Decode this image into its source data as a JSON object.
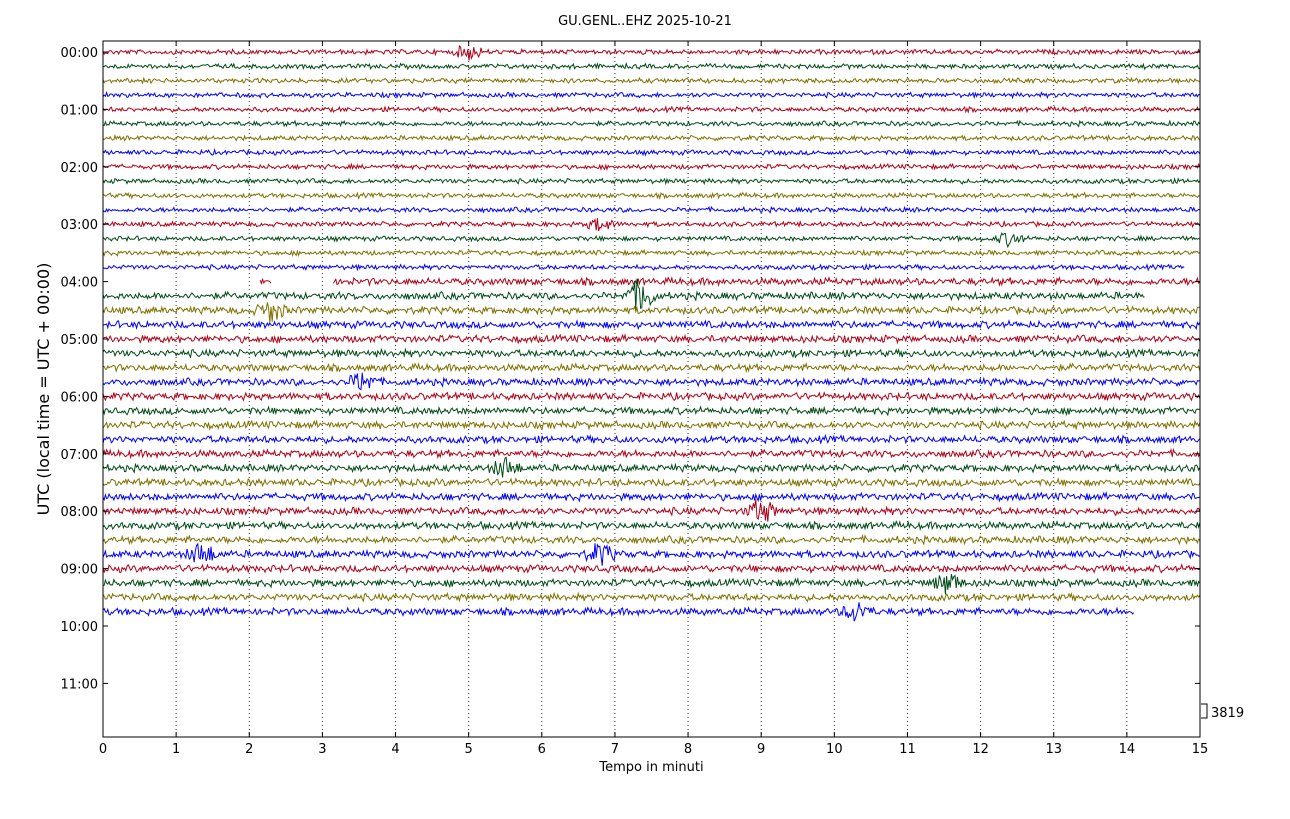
{
  "chart_data": {
    "type": "line",
    "title": "GU.GENL..EHZ 2025-10-21",
    "xlabel": "Tempo in minuti",
    "ylabel": "UTC (local time = UTC + 00:00)",
    "xlim": [
      0,
      15
    ],
    "x_ticks": [
      0,
      1,
      2,
      3,
      4,
      5,
      6,
      7,
      8,
      9,
      10,
      11,
      12,
      13,
      14,
      15
    ],
    "y_ticks": [
      "00:00",
      "01:00",
      "02:00",
      "03:00",
      "04:00",
      "05:00",
      "06:00",
      "07:00",
      "08:00",
      "09:00",
      "10:00",
      "11:00"
    ],
    "grid_x": true,
    "scale_label": "3819",
    "color_cycle": [
      "#b00018",
      "#004b16",
      "#7f7000",
      "#0000ff"
    ],
    "traces": {
      "count": 40,
      "minutes_per_trace": 15,
      "last_trace_end_minute": 14.1,
      "gaps": [
        {
          "trace": 15,
          "end_minute": 14.8
        },
        {
          "trace": 16,
          "segments": [
            [
              2.15,
              2.3
            ],
            [
              3.15,
              15
            ]
          ]
        },
        {
          "trace": 17,
          "end_minute": 14.25
        }
      ],
      "events": [
        {
          "trace": 0,
          "minute": 5.0,
          "amp": 2.2
        },
        {
          "trace": 12,
          "minute": 6.8,
          "amp": 2.0
        },
        {
          "trace": 13,
          "minute": 12.4,
          "amp": 2.0
        },
        {
          "trace": 17,
          "minute": 7.35,
          "amp": 3.5
        },
        {
          "trace": 18,
          "minute": 2.3,
          "amp": 2.2
        },
        {
          "trace": 23,
          "minute": 3.55,
          "amp": 2.0
        },
        {
          "trace": 29,
          "minute": 5.5,
          "amp": 2.0
        },
        {
          "trace": 32,
          "minute": 9.0,
          "amp": 2.5
        },
        {
          "trace": 35,
          "minute": 1.35,
          "amp": 2.3
        },
        {
          "trace": 35,
          "minute": 6.8,
          "amp": 2.2
        },
        {
          "trace": 37,
          "minute": 11.55,
          "amp": 2.2
        },
        {
          "trace": 39,
          "minute": 10.3,
          "amp": 2.0
        }
      ]
    }
  }
}
